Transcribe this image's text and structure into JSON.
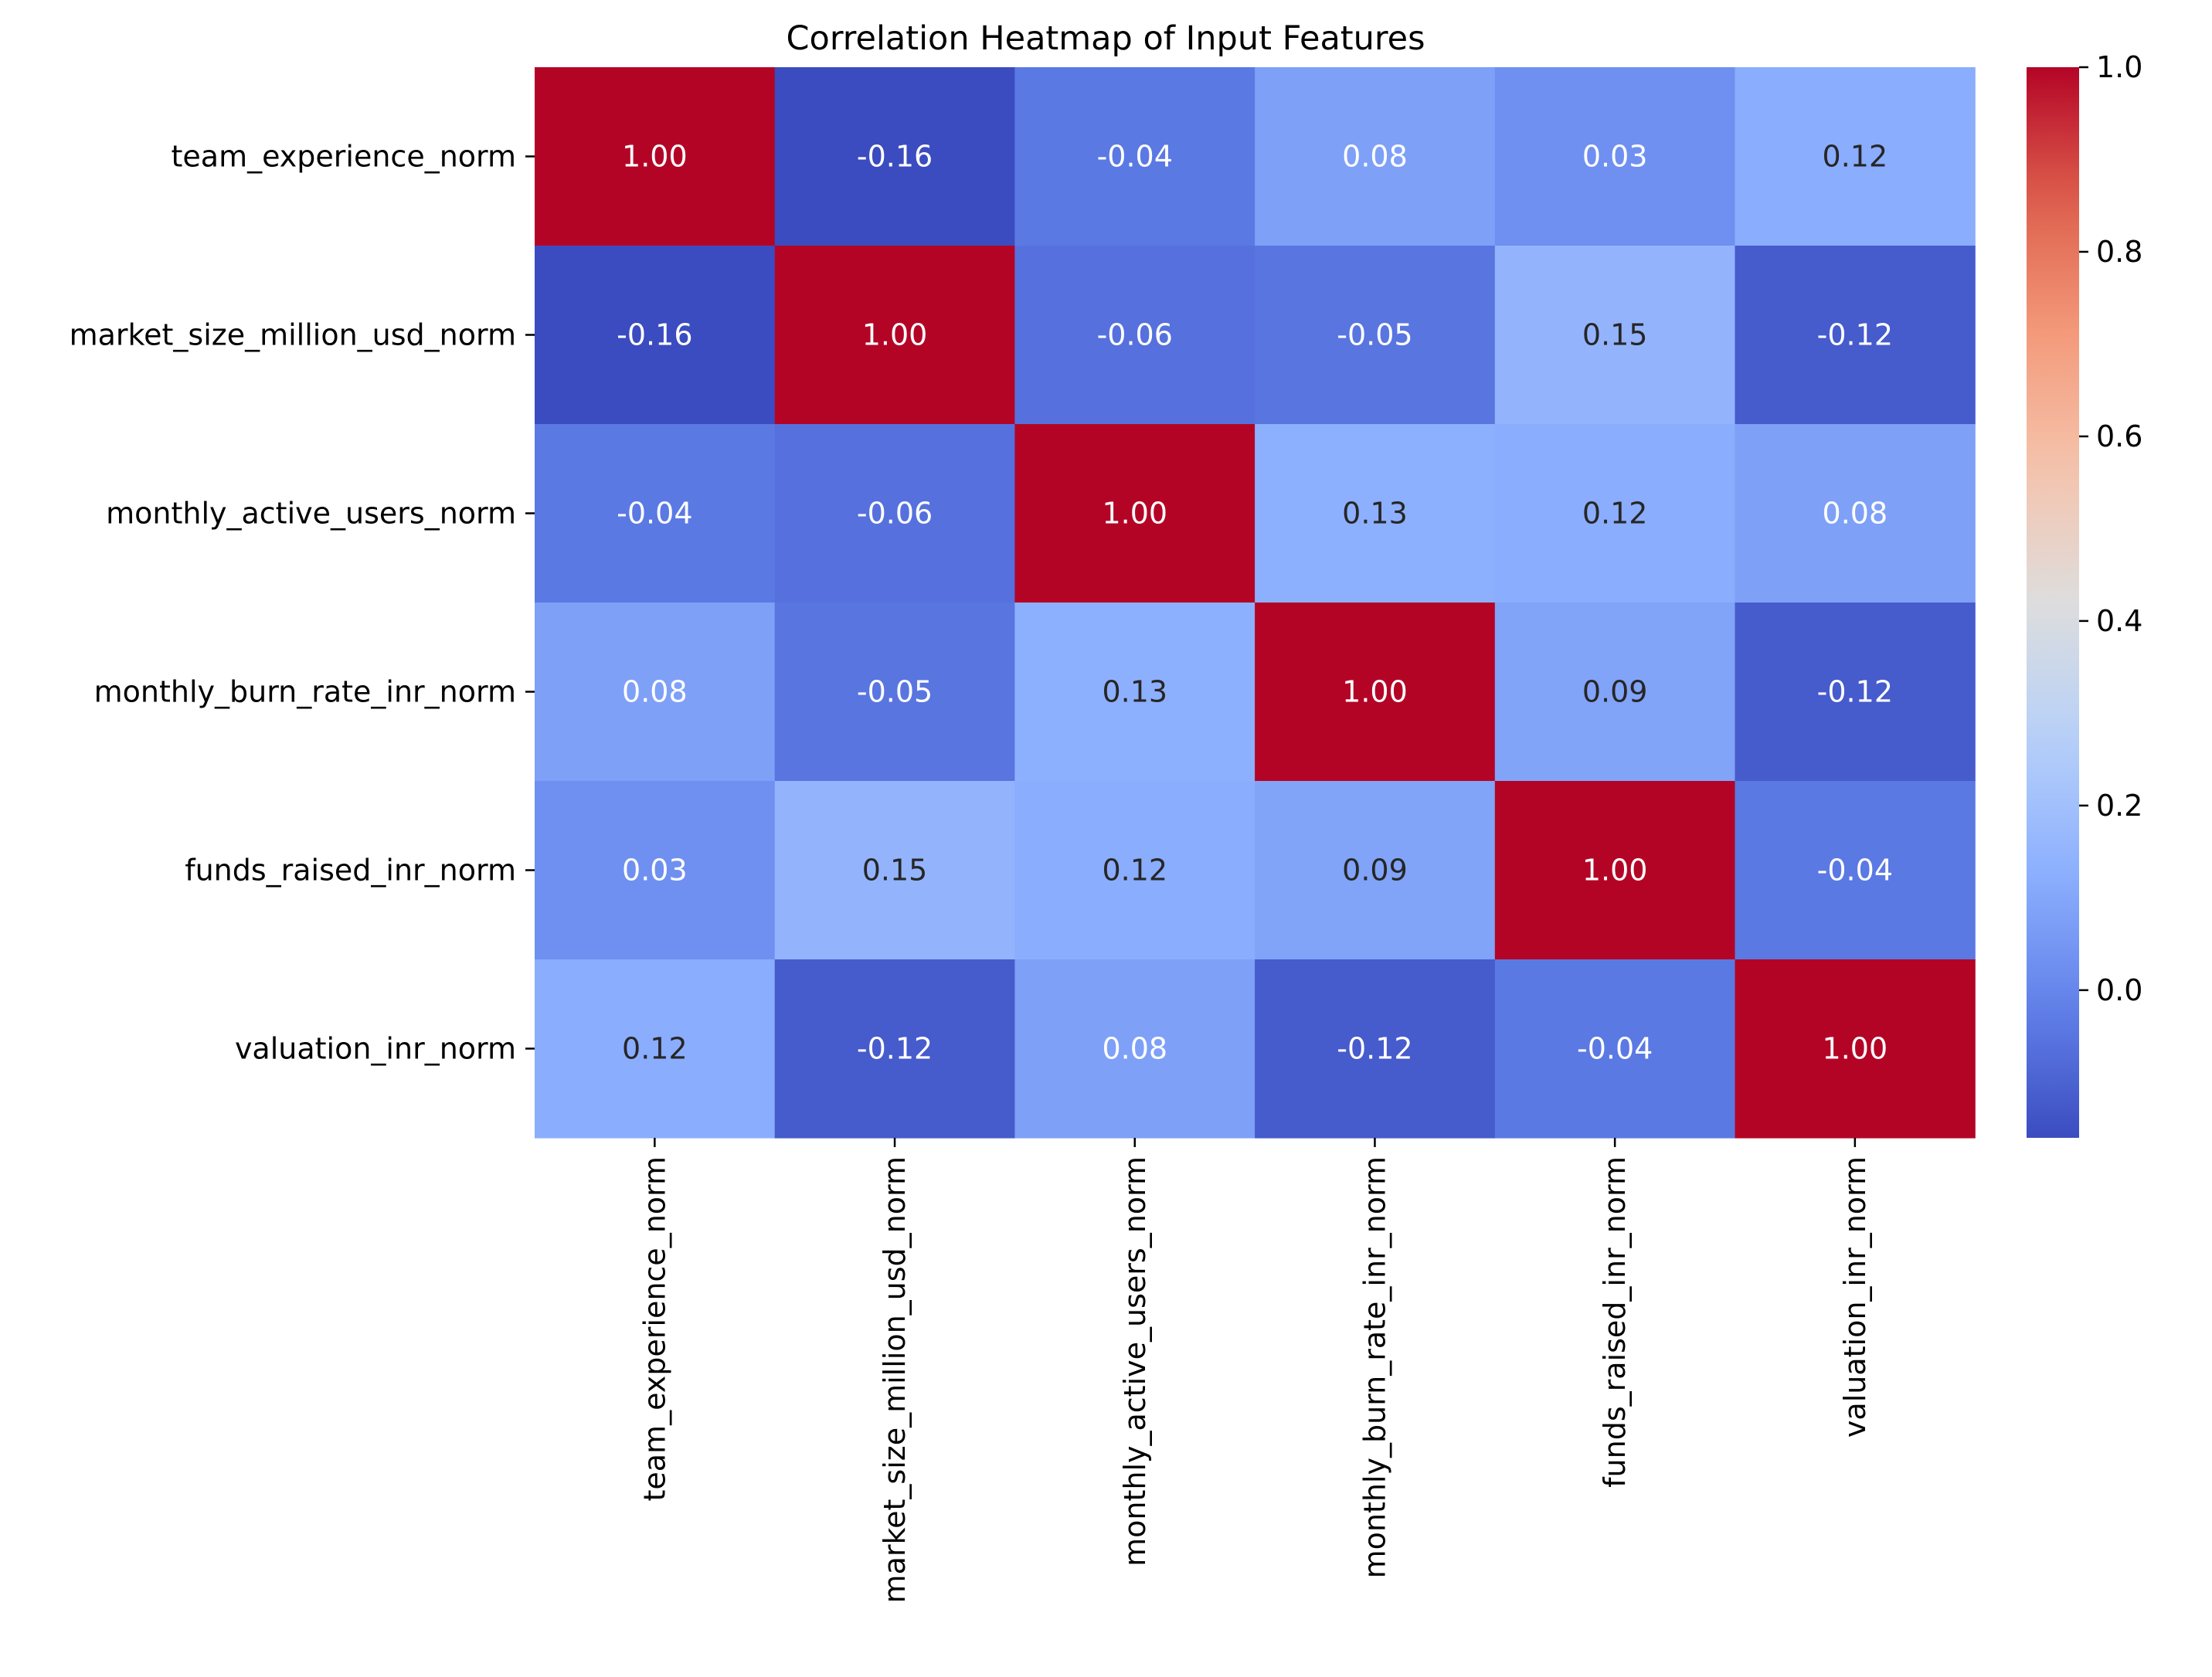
{
  "chart_data": {
    "type": "heatmap",
    "title": "Correlation Heatmap of Input Features",
    "xlabel": "",
    "ylabel": "",
    "row_labels": [
      "team_experience_norm",
      "market_size_million_usd_norm",
      "monthly_active_users_norm",
      "monthly_burn_rate_inr_norm",
      "funds_raised_inr_norm",
      "valuation_inr_norm"
    ],
    "col_labels": [
      "team_experience_norm",
      "market_size_million_usd_norm",
      "monthly_active_users_norm",
      "monthly_burn_rate_inr_norm",
      "funds_raised_inr_norm",
      "valuation_inr_norm"
    ],
    "values": [
      [
        1.0,
        -0.16,
        -0.04,
        0.08,
        0.03,
        0.12
      ],
      [
        -0.16,
        1.0,
        -0.06,
        -0.05,
        0.15,
        -0.12
      ],
      [
        -0.04,
        -0.06,
        1.0,
        0.13,
        0.12,
        0.08
      ],
      [
        0.08,
        -0.05,
        0.13,
        1.0,
        0.09,
        -0.12
      ],
      [
        0.03,
        0.15,
        0.12,
        0.09,
        1.0,
        -0.04
      ],
      [
        0.12,
        -0.12,
        0.08,
        -0.12,
        -0.04,
        1.0
      ]
    ],
    "cell_labels": [
      [
        "1.00",
        "-0.16",
        "-0.04",
        "0.08",
        "0.03",
        "0.12"
      ],
      [
        "-0.16",
        "1.00",
        "-0.06",
        "-0.05",
        "0.15",
        "-0.12"
      ],
      [
        "-0.04",
        "-0.06",
        "1.00",
        "0.13",
        "0.12",
        "0.08"
      ],
      [
        "0.08",
        "-0.05",
        "0.13",
        "1.00",
        "0.09",
        "-0.12"
      ],
      [
        "0.03",
        "0.15",
        "0.12",
        "0.09",
        "1.00",
        "-0.04"
      ],
      [
        "0.12",
        "-0.12",
        "0.08",
        "-0.12",
        "-0.04",
        "1.00"
      ]
    ],
    "colormap": "coolwarm",
    "color_range": [
      -0.16,
      1.0
    ],
    "colorbar": {
      "ticks": [
        0.0,
        0.2,
        0.4,
        0.6,
        0.8,
        1.0
      ],
      "tick_labels": [
        "0.0",
        "0.2",
        "0.4",
        "0.6",
        "0.8",
        "1.0"
      ]
    },
    "grid": false,
    "legend": "colorbar-right"
  }
}
